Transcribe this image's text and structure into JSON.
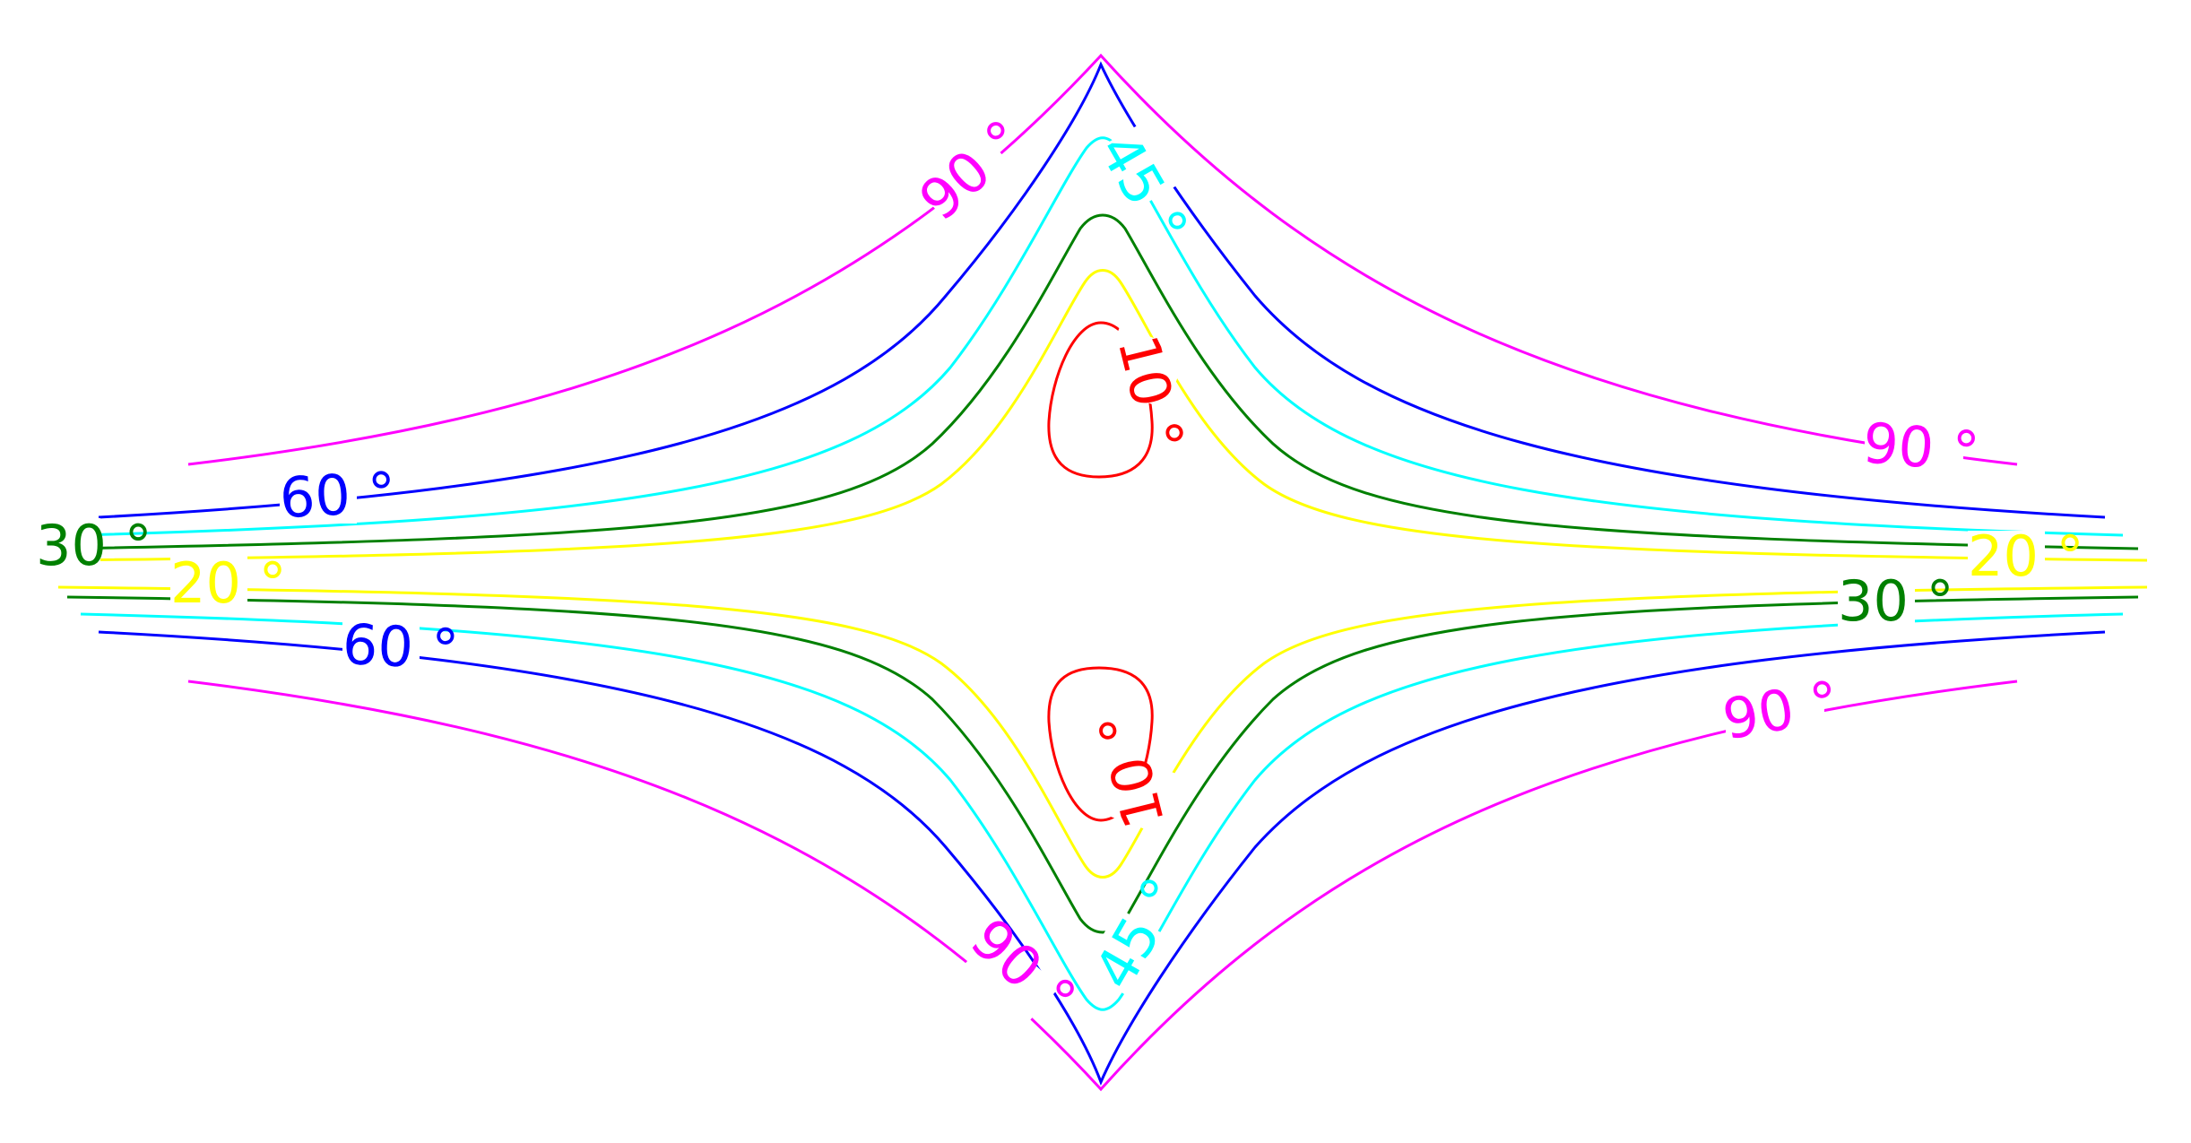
{
  "contours": [
    {
      "level": "10 °",
      "color": "#ff0000"
    },
    {
      "level": "20 °",
      "color": "#ffff00"
    },
    {
      "level": "30 °",
      "color": "#008000"
    },
    {
      "level": "45 °",
      "color": "#00ffff"
    },
    {
      "level": "60 °",
      "color": "#0000ff"
    },
    {
      "level": "90 °",
      "color": "#ff00ff"
    }
  ],
  "labels": {
    "c90_ul": "90 °",
    "c90_ur": "90 °",
    "c90_lr": "90 °",
    "c90_bl": "90 °",
    "c60_l": "60 °",
    "c60_l2": "60 °",
    "c45_t": "45 °",
    "c45_b": "45 °",
    "c30_l": "30 °",
    "c30_r": "30 °",
    "c20_l": "20 °",
    "c20_r": "20 °",
    "c10_t": "10 °",
    "c10_b": "10 °"
  }
}
